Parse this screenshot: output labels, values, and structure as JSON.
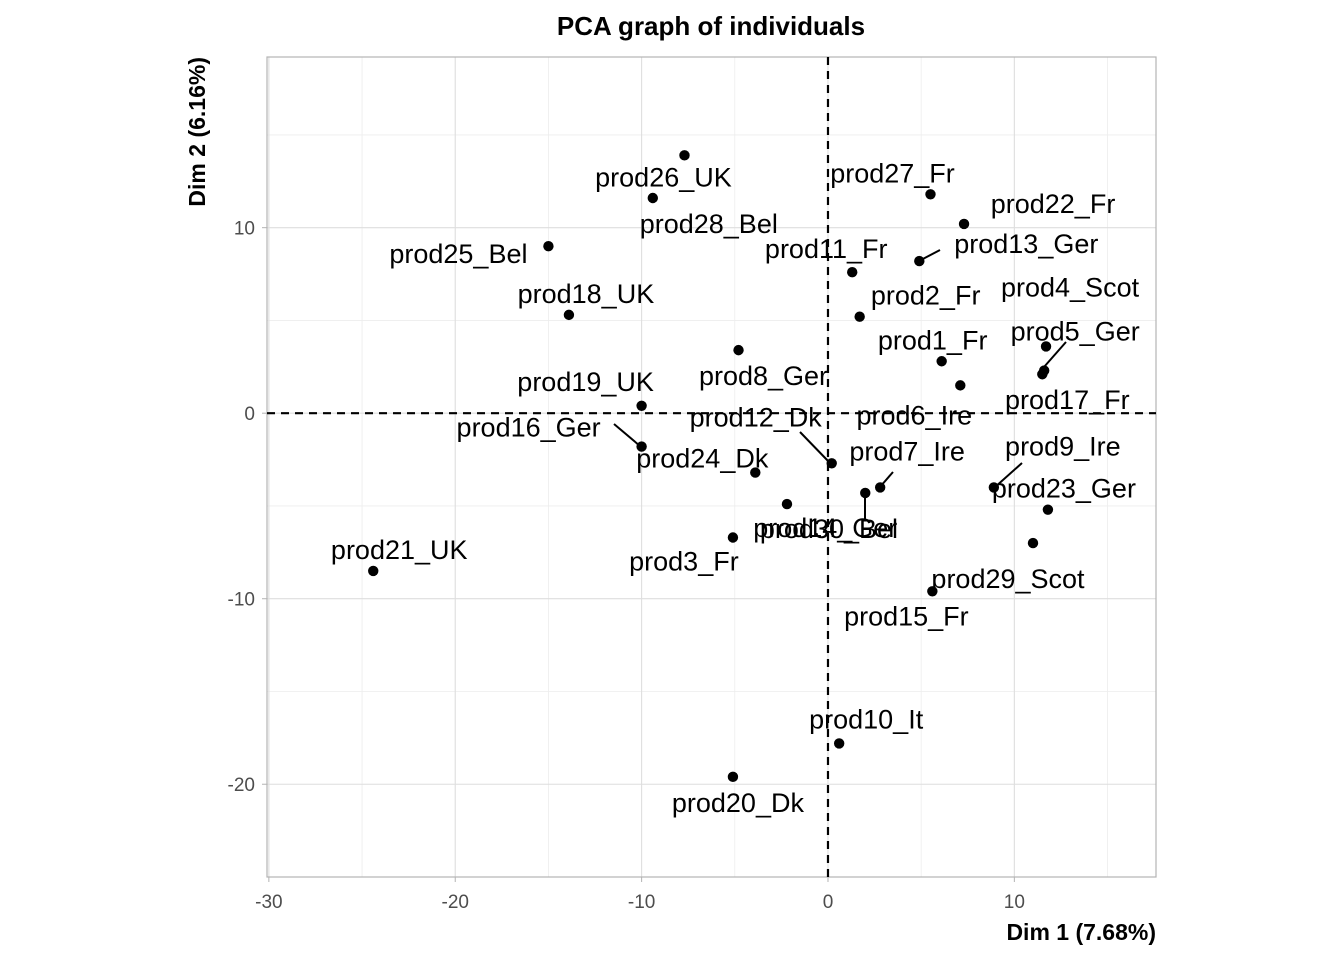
{
  "chart_data": {
    "type": "scatter",
    "title": "PCA graph of individuals",
    "xlabel": "Dim 1 (7.68%)",
    "ylabel": "Dim 2 (6.16%)",
    "xlim": [
      -30.1,
      17.6
    ],
    "ylim": [
      -25.0,
      19.2
    ],
    "x_ticks": [
      -30,
      -20,
      -10,
      0,
      10
    ],
    "y_ticks": [
      -20,
      -10,
      0,
      10
    ],
    "grid": true,
    "reference_lines": {
      "x": 0,
      "y": 0,
      "style": "dashed"
    },
    "points": [
      {
        "label": "prod1_Fr",
        "x": 6.1,
        "y": 2.8
      },
      {
        "label": "prod2_Fr",
        "x": 1.7,
        "y": 5.2
      },
      {
        "label": "prod3_Fr",
        "x": -5.1,
        "y": -6.7
      },
      {
        "label": "prod4_Scot",
        "x": 11.7,
        "y": 3.6
      },
      {
        "label": "prod5_Ger",
        "x": 11.6,
        "y": 2.3
      },
      {
        "label": "prod6_Ire",
        "x": 7.1,
        "y": 1.5
      },
      {
        "label": "prod7_Ire",
        "x": 2.8,
        "y": -4.0
      },
      {
        "label": "prod8_Ger",
        "x": -4.8,
        "y": 3.4
      },
      {
        "label": "prod9_Ire",
        "x": 8.9,
        "y": -4.0
      },
      {
        "label": "prod10_It",
        "x": 0.6,
        "y": -17.8
      },
      {
        "label": "prod11_Fr",
        "x": 1.3,
        "y": 7.6
      },
      {
        "label": "prod12_Dk",
        "x": 0.2,
        "y": -2.7
      },
      {
        "label": "prod13_Ger",
        "x": 4.9,
        "y": 8.2
      },
      {
        "label": "prod14_Ger",
        "x": 2.0,
        "y": -4.3
      },
      {
        "label": "prod15_Fr",
        "x": 5.6,
        "y": -9.6
      },
      {
        "label": "prod16_Ger",
        "x": -10.0,
        "y": -1.8
      },
      {
        "label": "prod17_Fr",
        "x": 11.5,
        "y": 2.1
      },
      {
        "label": "prod18_UK",
        "x": -13.9,
        "y": 5.3
      },
      {
        "label": "prod19_UK",
        "x": -10.0,
        "y": 0.4
      },
      {
        "label": "prod20_Dk",
        "x": -5.1,
        "y": -19.6
      },
      {
        "label": "prod21_UK",
        "x": -24.4,
        "y": -8.5
      },
      {
        "label": "prod22_Fr",
        "x": 7.3,
        "y": 10.2
      },
      {
        "label": "prod23_Ger",
        "x": 11.8,
        "y": -5.2
      },
      {
        "label": "prod24_Dk",
        "x": -3.9,
        "y": -3.2
      },
      {
        "label": "prod25_Bel",
        "x": -15.0,
        "y": 9.0
      },
      {
        "label": "prod26_UK",
        "x": -7.7,
        "y": 13.9
      },
      {
        "label": "prod27_Fr",
        "x": 5.5,
        "y": 11.8
      },
      {
        "label": "prod28_Bel",
        "x": -9.4,
        "y": 11.6
      },
      {
        "label": "prod29_Scot",
        "x": 11.0,
        "y": -7.0
      },
      {
        "label": "prod30_Bel",
        "x": -2.2,
        "y": -4.9
      }
    ]
  }
}
